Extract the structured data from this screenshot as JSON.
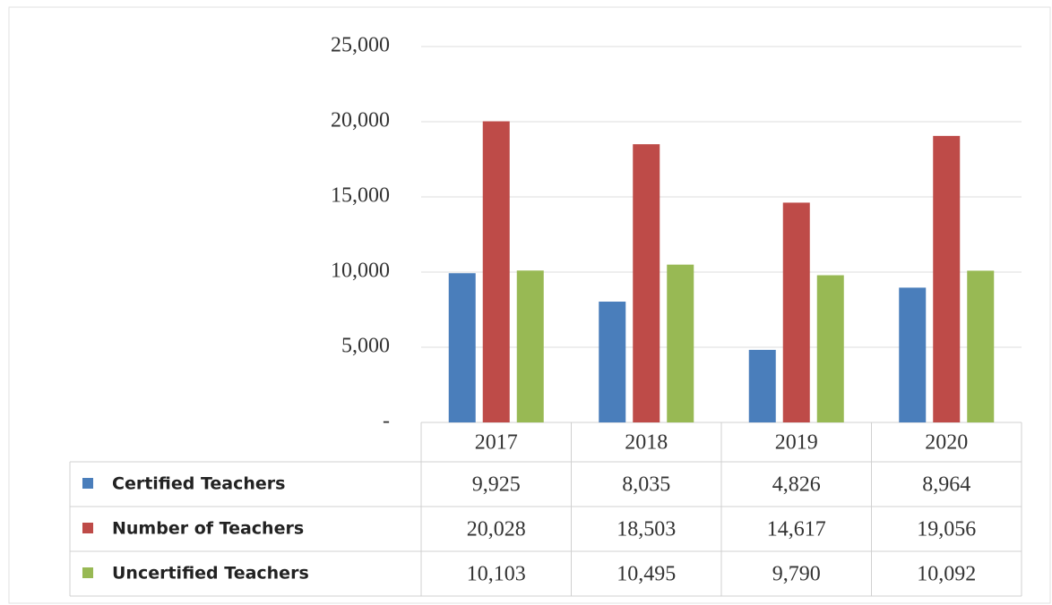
{
  "chart_data": {
    "type": "bar",
    "categories": [
      "2017",
      "2018",
      "2019",
      "2020"
    ],
    "series": [
      {
        "name": "Certified Teachers",
        "color": "#4a7ebb",
        "values": [
          9925,
          8035,
          4826,
          8964
        ],
        "value_labels": [
          "9,925",
          "8,035",
          "4,826",
          "8,964"
        ]
      },
      {
        "name": "Number of Teachers",
        "color": "#be4b48",
        "values": [
          20028,
          18503,
          14617,
          19056
        ],
        "value_labels": [
          "20,028",
          "18,503",
          "14,617",
          "19,056"
        ]
      },
      {
        "name": "Uncertified Teachers",
        "color": "#98b954",
        "values": [
          10103,
          10495,
          9790,
          10092
        ],
        "value_labels": [
          "10,103",
          "10,495",
          "9,790",
          "10,092"
        ]
      }
    ],
    "ylim": [
      0,
      25000
    ],
    "yticks": [
      {
        "value": 0,
        "label": "-"
      },
      {
        "value": 5000,
        "label": "5,000"
      },
      {
        "value": 10000,
        "label": "10,000"
      },
      {
        "value": 15000,
        "label": "15,000"
      },
      {
        "value": 20000,
        "label": "20,000"
      },
      {
        "value": 25000,
        "label": "25,000"
      }
    ],
    "grid": true
  }
}
